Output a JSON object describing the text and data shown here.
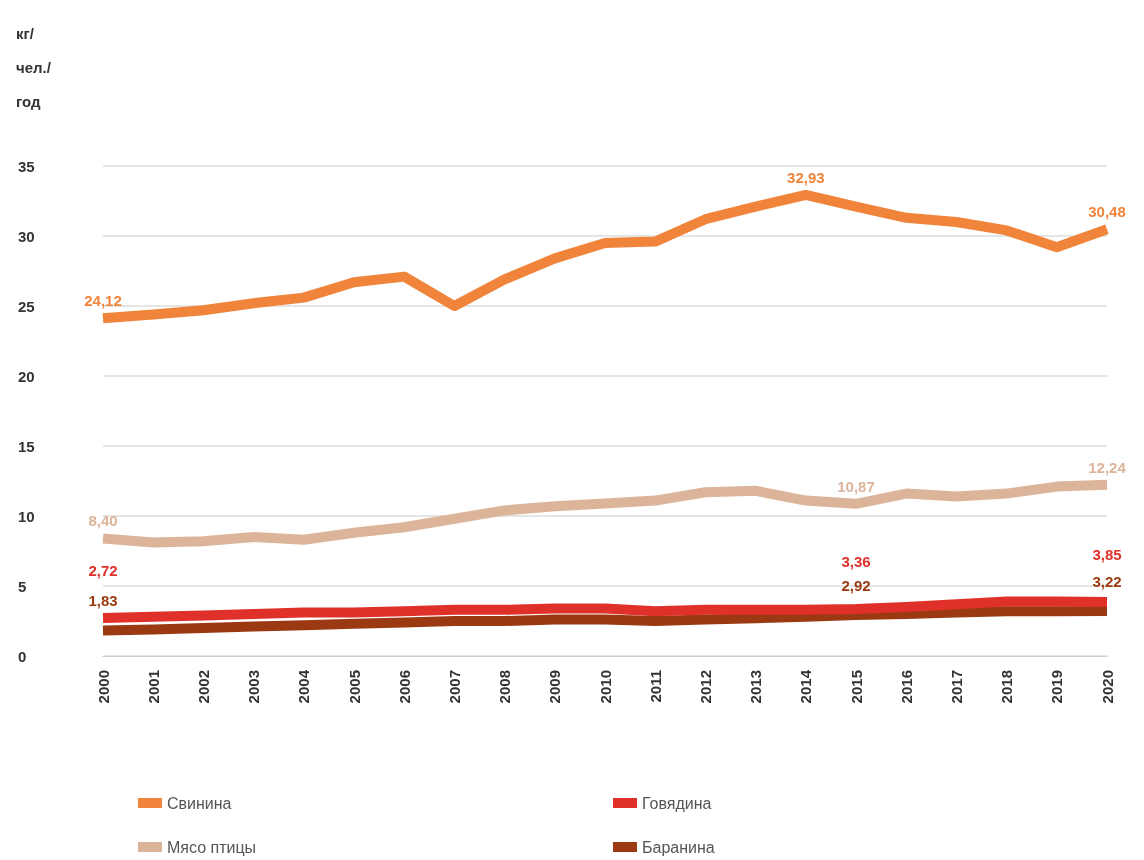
{
  "chart_data": {
    "type": "line",
    "ylabel": "кг/ чел./ год",
    "categories": [
      "2000",
      "2001",
      "2002",
      "2003",
      "2004",
      "2005",
      "2006",
      "2007",
      "2008",
      "2009",
      "2010",
      "2011",
      "2012",
      "2013",
      "2014",
      "2015",
      "2016",
      "2017",
      "2018",
      "2019",
      "2020"
    ],
    "series": [
      {
        "name": "Свинина",
        "color": "#f0843a",
        "values": [
          24.12,
          24.4,
          24.7,
          25.2,
          25.6,
          26.7,
          27.1,
          25.0,
          26.9,
          28.4,
          29.5,
          29.6,
          31.2,
          32.1,
          32.93,
          32.1,
          31.3,
          31.0,
          30.4,
          29.2,
          30.48
        ],
        "value_labels": [
          "24,12",
          null,
          null,
          null,
          null,
          null,
          null,
          null,
          null,
          null,
          null,
          null,
          null,
          null,
          "32,93",
          null,
          null,
          null,
          null,
          null,
          "30,48"
        ]
      },
      {
        "name": "Мясо птицы",
        "color": "#dcb49a",
        "values": [
          8.4,
          8.1,
          8.2,
          8.5,
          8.3,
          8.8,
          9.2,
          9.8,
          10.4,
          10.7,
          10.9,
          11.1,
          11.7,
          11.8,
          11.1,
          10.87,
          11.6,
          11.4,
          11.6,
          12.1,
          12.24
        ],
        "value_labels": [
          "8,40",
          null,
          null,
          null,
          null,
          null,
          null,
          null,
          null,
          null,
          null,
          null,
          null,
          null,
          null,
          "10,87",
          null,
          null,
          null,
          null,
          "12,24"
        ]
      },
      {
        "name": "Говядина",
        "color": "#e0302a",
        "values": [
          2.72,
          2.8,
          2.9,
          3.0,
          3.1,
          3.1,
          3.2,
          3.3,
          3.3,
          3.4,
          3.4,
          3.2,
          3.3,
          3.3,
          3.3,
          3.36,
          3.5,
          3.7,
          3.9,
          3.9,
          3.85
        ],
        "value_labels": [
          "2,72",
          null,
          null,
          null,
          null,
          null,
          null,
          null,
          null,
          null,
          null,
          null,
          null,
          null,
          null,
          "3,36",
          null,
          null,
          null,
          null,
          "3,85"
        ]
      },
      {
        "name": "Баранина",
        "color": "#9b3a12",
        "values": [
          1.83,
          1.9,
          2.0,
          2.1,
          2.2,
          2.3,
          2.4,
          2.5,
          2.5,
          2.6,
          2.6,
          2.5,
          2.6,
          2.7,
          2.8,
          2.92,
          3.0,
          3.1,
          3.2,
          3.2,
          3.22
        ],
        "value_labels": [
          "1,83",
          null,
          null,
          null,
          null,
          null,
          null,
          null,
          null,
          null,
          null,
          null,
          null,
          null,
          null,
          "2,92",
          null,
          null,
          null,
          null,
          "3,22"
        ]
      }
    ],
    "ylim": [
      0,
      35
    ],
    "yticks": [
      0,
      5,
      10,
      15,
      20,
      25,
      30,
      35
    ],
    "grid": "y",
    "legend": "bottom",
    "marker": "none",
    "line_style": "solid"
  }
}
